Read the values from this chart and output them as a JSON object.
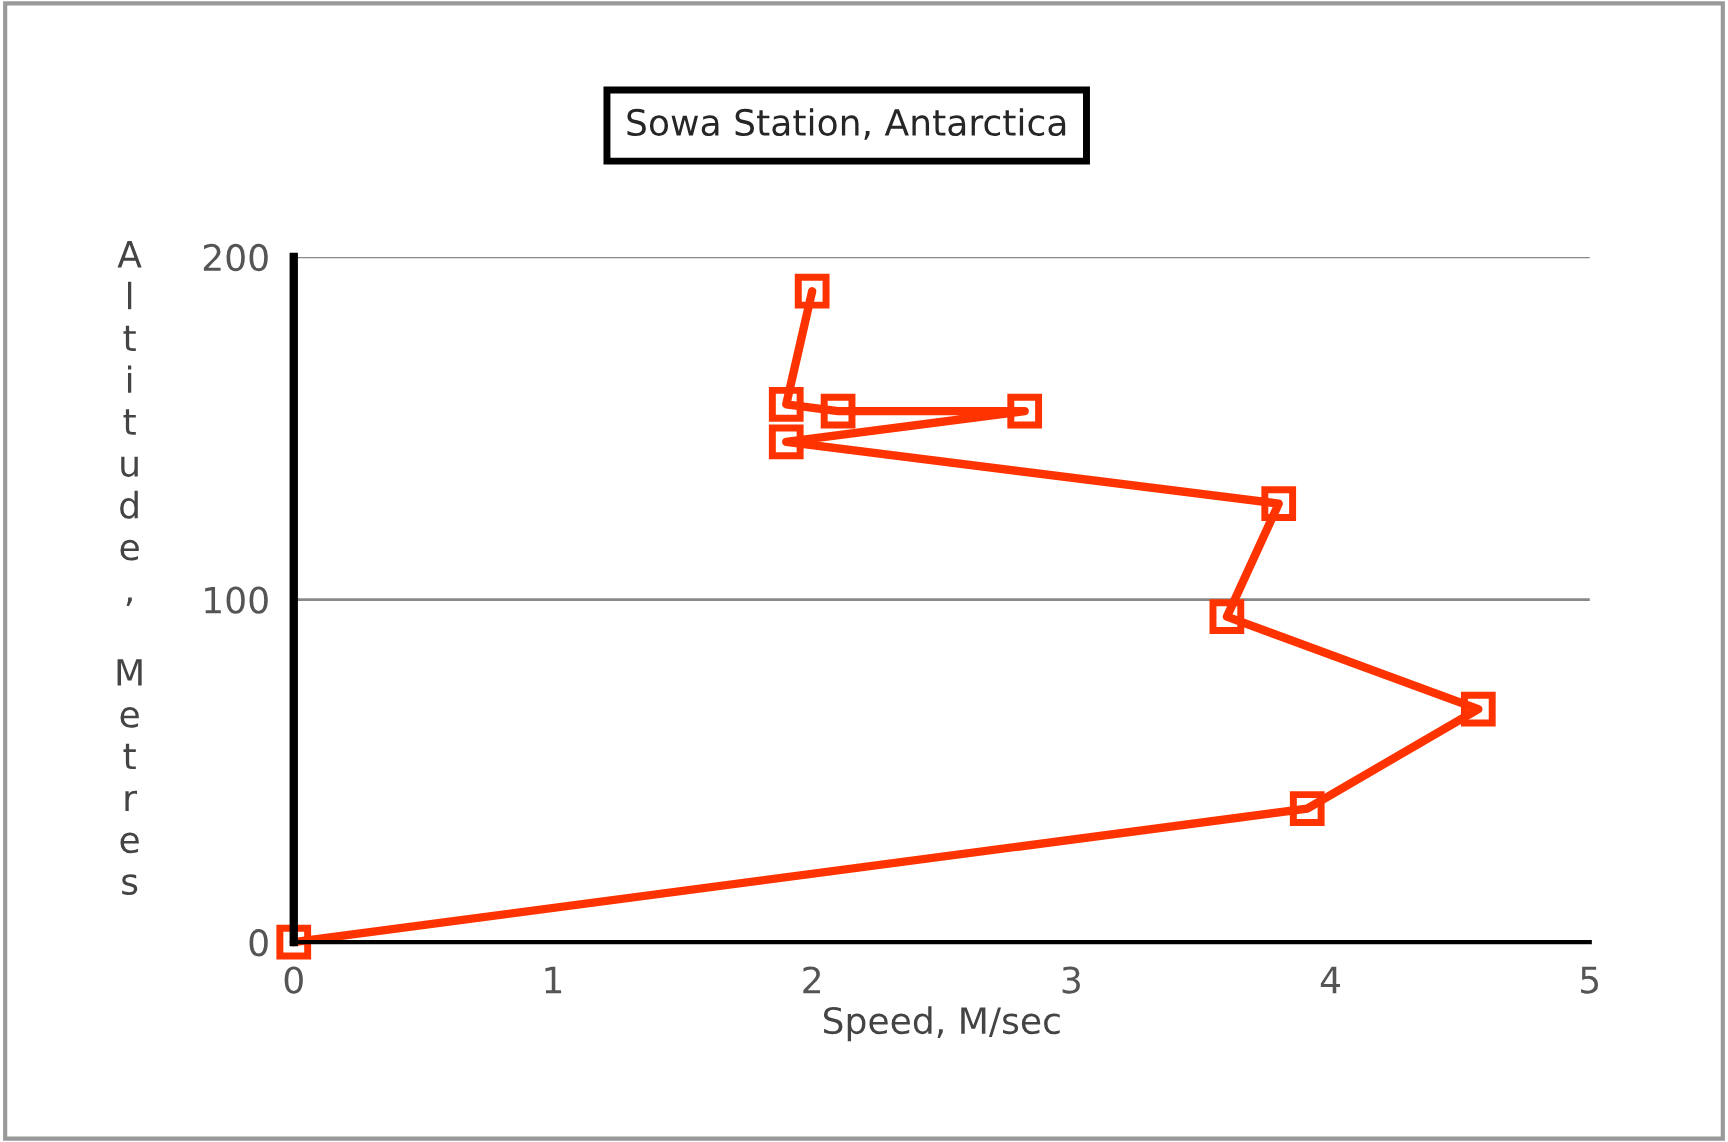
{
  "chart_data": {
    "type": "line",
    "title": "Sowa Station, Antarctica",
    "xlabel": "Speed, M/sec",
    "ylabel": "Altitude, Metres",
    "x": [
      0,
      3.91,
      4.57,
      3.6,
      3.8,
      1.9,
      2.82,
      2.1,
      1.9,
      2.0
    ],
    "series": [
      {
        "color": "#ff3300",
        "values": [
          0,
          39,
          68,
          95,
          128,
          146,
          155,
          155,
          157,
          190
        ]
      }
    ],
    "xlim": [
      0,
      5
    ],
    "xticks": [
      0,
      1,
      2,
      3,
      4,
      5
    ],
    "ylim": [
      0,
      200
    ],
    "yticks": [
      0,
      100,
      200
    ],
    "grid": "y",
    "marker": "square",
    "line_style": "solid"
  }
}
